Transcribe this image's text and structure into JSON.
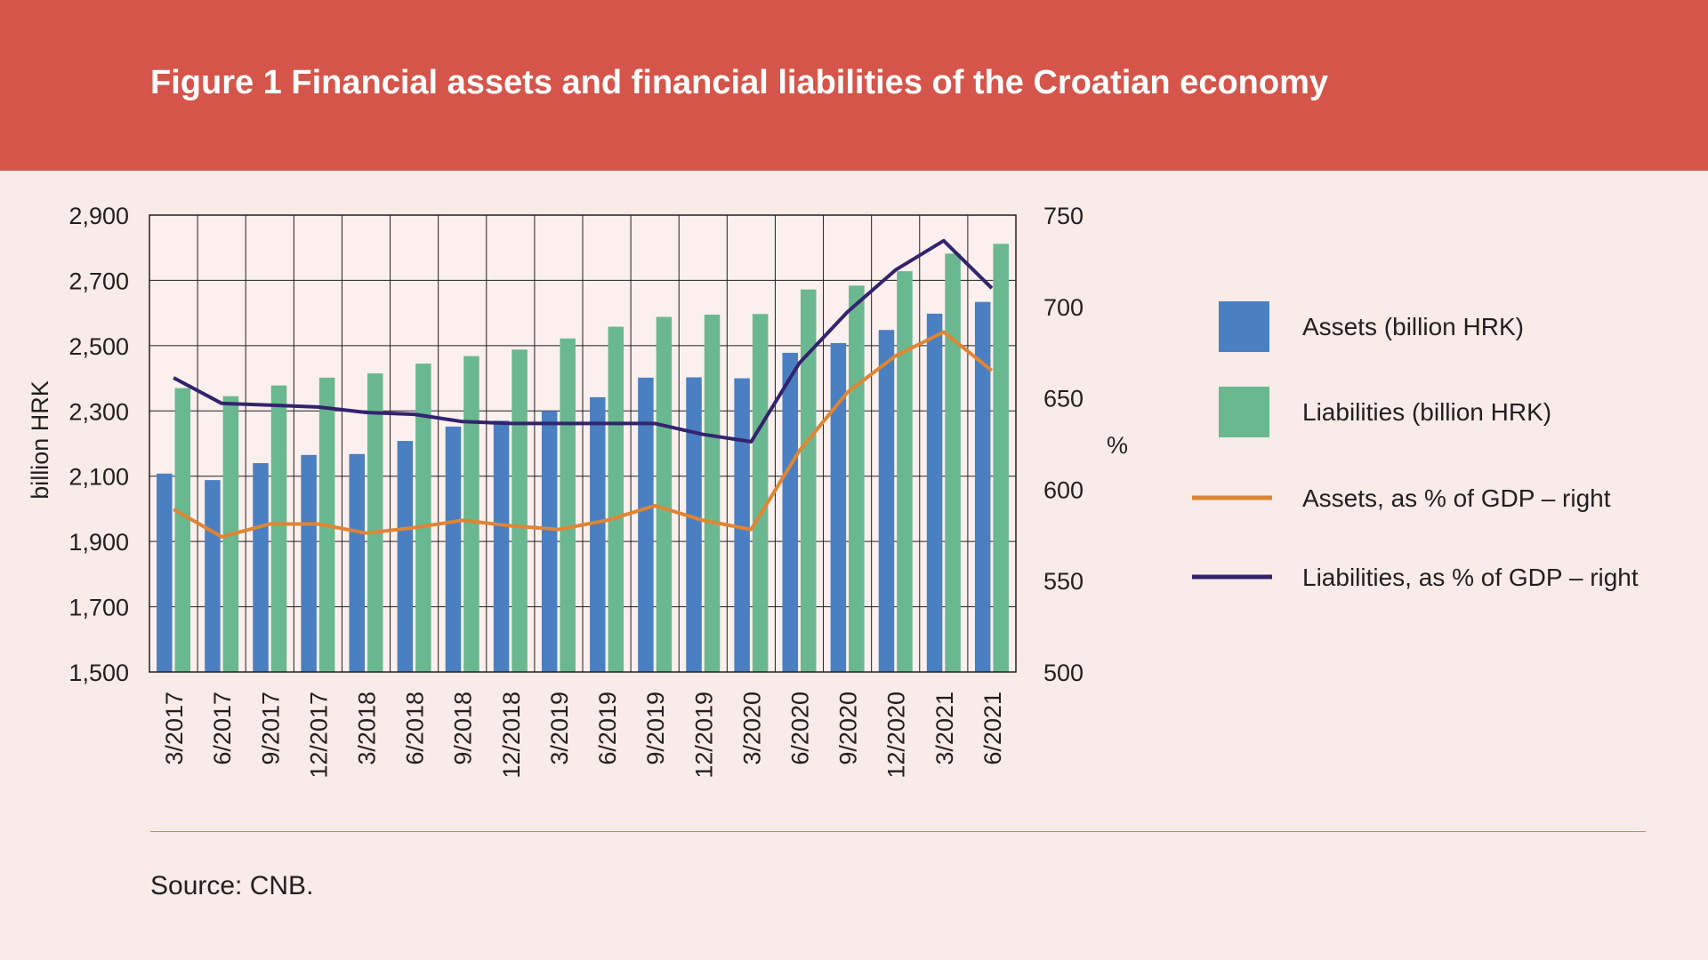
{
  "title": "Figure 1 Financial assets and financial liabilities of the Croatian economy",
  "source": "Source: CNB.",
  "colors": {
    "header": "#d5554a",
    "background": "#f8ebe8",
    "assets_bar": "#4a7fc1",
    "liabilities_bar": "#69b88f",
    "assets_line": "#df8533",
    "liabilities_line": "#33236e"
  },
  "chart_data": {
    "type": "bar",
    "categories": [
      "3/2017",
      "6/2017",
      "9/2017",
      "12/2017",
      "3/2018",
      "6/2018",
      "9/2018",
      "12/2018",
      "3/2019",
      "6/2019",
      "9/2019",
      "12/2019",
      "3/2020",
      "6/2020",
      "9/2020",
      "12/2020",
      "3/2021",
      "6/2021"
    ],
    "ylabel": "billion HRK",
    "y2label": "%",
    "ylim": [
      1500,
      2900
    ],
    "yticks": [
      "1,500",
      "1,700",
      "1,900",
      "2,100",
      "2,300",
      "2,500",
      "2,700",
      "2,900"
    ],
    "y2lim": [
      500,
      750
    ],
    "y2ticks": [
      "500",
      "550",
      "600",
      "650",
      "700",
      "750"
    ],
    "grid": true,
    "legend_position": "right",
    "series": [
      {
        "name": "Assets (billion HRK)",
        "kind": "bar",
        "axis": "left",
        "values": [
          2108,
          2088,
          2140,
          2165,
          2168,
          2208,
          2252,
          2270,
          2300,
          2342,
          2402,
          2403,
          2400,
          2478,
          2508,
          2548,
          2598,
          2634
        ]
      },
      {
        "name": "Liabilities (billion HRK)",
        "kind": "bar",
        "axis": "left",
        "values": [
          2370,
          2345,
          2378,
          2402,
          2415,
          2445,
          2468,
          2488,
          2522,
          2558,
          2588,
          2595,
          2597,
          2672,
          2684,
          2728,
          2782,
          2812
        ]
      },
      {
        "name": "Assets, as % of GDP – right",
        "kind": "line",
        "axis": "right",
        "values": [
          589,
          574,
          581,
          581,
          576,
          579,
          583,
          580,
          578,
          583,
          591,
          583,
          578,
          621,
          653,
          673,
          686,
          665
        ]
      },
      {
        "name": "Liabilities, as % of GDP – right",
        "kind": "line",
        "axis": "right",
        "values": [
          661,
          647,
          646,
          645,
          642,
          641,
          637,
          636,
          636,
          636,
          636,
          630,
          626,
          669,
          697,
          720,
          736,
          710
        ]
      }
    ]
  }
}
